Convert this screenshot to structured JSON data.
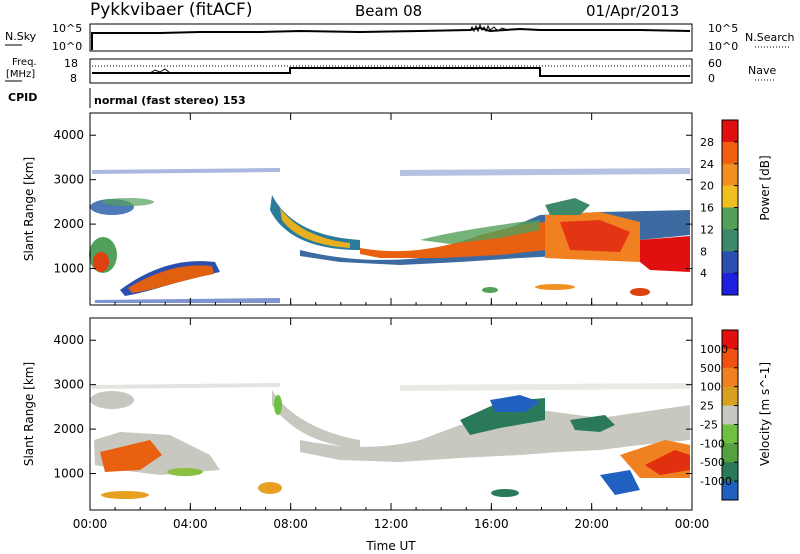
{
  "header": {
    "title": "Pykkvibaer (fitACF)",
    "beam": "Beam 08",
    "date": "01/Apr/2013"
  },
  "sky_panel": {
    "left_label": "N.Sky",
    "left_ticks": [
      "10^5",
      "10^0"
    ],
    "right_label": "N.Search",
    "right_ticks": [
      "10^5",
      "10^0"
    ]
  },
  "freq_panel": {
    "left_label_line1": "Freq.",
    "left_label_line2": "[MHz]",
    "left_ticks": [
      "18",
      "8"
    ],
    "right_label": "Nave",
    "right_ticks": [
      "60",
      "0"
    ]
  },
  "cpid": {
    "label": "CPID",
    "value": "normal (fast stereo) 153"
  },
  "colors": {
    "power_scale": [
      "#1f1fe0",
      "#2a4fb0",
      "#3d8a6b",
      "#52a05a",
      "#f0c020",
      "#f09020",
      "#f06010",
      "#e01010"
    ],
    "velocity_scale": [
      "#2060c0",
      "#2a7a5a",
      "#55a040",
      "#6ec040",
      "#c8c8c0",
      "#d8a020",
      "#f08020",
      "#f05010",
      "#e01010"
    ]
  },
  "chart_data": [
    {
      "type": "heatmap",
      "panel": "power",
      "xlabel": "Time UT",
      "ylabel": "Slant Range [km]",
      "x_ticks": [
        "00:00",
        "04:00",
        "08:00",
        "12:00",
        "16:00",
        "20:00",
        "00:00"
      ],
      "y_ticks": [
        1000,
        2000,
        3000,
        4000
      ],
      "ylim": [
        180,
        4500
      ],
      "colorbar_label": "Power [dB]",
      "colorbar_ticks": [
        "28",
        "24",
        "20",
        "16",
        "12",
        "8",
        "4"
      ],
      "clim": [
        0,
        32
      ]
    },
    {
      "type": "heatmap",
      "panel": "velocity",
      "xlabel": "Time UT",
      "ylabel": "Slant Range [km]",
      "x_ticks": [
        "00:00",
        "04:00",
        "08:00",
        "12:00",
        "16:00",
        "20:00",
        "00:00"
      ],
      "y_ticks": [
        1000,
        2000,
        3000,
        4000
      ],
      "ylim": [
        180,
        4500
      ],
      "colorbar_label": "Velocity [m s^-1]",
      "colorbar_ticks": [
        "1000",
        "500",
        "100",
        "25",
        "-25",
        "-100",
        "-500",
        "-1000"
      ]
    }
  ]
}
